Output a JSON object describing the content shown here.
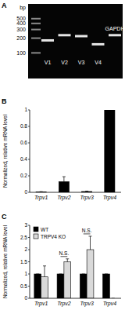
{
  "chart_data": [
    {
      "type": "gel",
      "panel": "A",
      "y_label": "bp",
      "log": "y",
      "ylim": [
        30,
        1000
      ],
      "yticks": [
        100,
        200,
        300,
        400,
        500
      ],
      "categories": [
        "V1",
        "V2",
        "V3",
        "V4",
        "GAPDH"
      ],
      "values": [
        180,
        230,
        220,
        150,
        230
      ]
    },
    {
      "type": "bar",
      "panel": "B",
      "y_label": "Normalized, relative mRNA level",
      "categories": [
        "Trpv1",
        "Trpv2",
        "Trpv3",
        "Trpv4"
      ],
      "values": [
        0.005,
        0.13,
        0.01,
        1
      ],
      "errors": [
        0.003,
        0.06,
        0.005,
        0
      ],
      "color": "#000000",
      "ylim": [
        0,
        1
      ],
      "yticks": [
        0,
        0.2,
        0.4,
        0.6,
        0.8,
        1
      ]
    },
    {
      "type": "bar",
      "panel": "C",
      "y_label": "Normalized, relative mRNA level",
      "categories": [
        "Trpv1",
        "Trpv2",
        "Trpv3",
        "Trpv4"
      ],
      "series": [
        {
          "name": "WT",
          "color": "#000000",
          "values": [
            1,
            1,
            1,
            1
          ],
          "errors": [
            0,
            0,
            0,
            0
          ]
        },
        {
          "name": "TRPV4 KO",
          "color": "#d9d9d9",
          "values": [
            0.88,
            1.5,
            2.0,
            0
          ],
          "errors": [
            0.45,
            0.12,
            0.55,
            0
          ]
        }
      ],
      "legend": "top-left",
      "annotations": [
        {
          "text": "N.S.",
          "category": 1
        },
        {
          "text": "N.S.",
          "category": 2
        }
      ],
      "ylim": [
        0,
        3
      ],
      "yticks": [
        0,
        0.5,
        1,
        1.5,
        2,
        2.5,
        3
      ]
    }
  ]
}
